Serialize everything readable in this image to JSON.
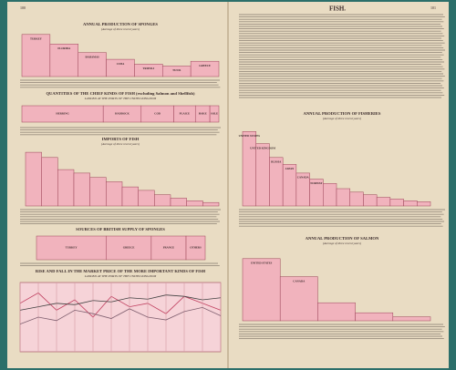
{
  "left_page": {
    "page_number": "100",
    "sponges": {
      "title": "ANNUAL PRODUCTION OF SPONGES",
      "subtitle": "(Average of three recent years)",
      "bars": [
        {
          "label": "TURKEY",
          "value": 44
        },
        {
          "label": "FLORIDA",
          "value": 34
        },
        {
          "label": "BAHAMAS",
          "value": 25
        },
        {
          "label": "CUBA",
          "value": 18
        },
        {
          "label": "TRIPOLI",
          "value": 13
        },
        {
          "label": "TUNIS",
          "value": 11
        },
        {
          "label": "GREECE",
          "value": 16
        }
      ]
    },
    "fish_kinds": {
      "title": "QUANTITIES OF THE CHIEF KINDS OF FISH (excluding Salmon and Shellfish)",
      "subtitle": "LANDED AT THE PORTS OF THE UNITED KINGDOM",
      "bars": [
        {
          "label": "HERRING",
          "value": 90
        },
        {
          "label": "HADDOCK",
          "value": 42
        },
        {
          "label": "COD",
          "value": 36
        },
        {
          "label": "PLAICE",
          "value": 24
        },
        {
          "label": "HAKE",
          "value": 16
        },
        {
          "label": "SOLE",
          "value": 10
        }
      ]
    },
    "imports": {
      "title": "IMPORTS OF FISH",
      "subtitle": "(Average of three recent years)",
      "bars": [
        {
          "value": 62
        },
        {
          "value": 56
        },
        {
          "value": 42
        },
        {
          "value": 38
        },
        {
          "value": 33
        },
        {
          "value": 28
        },
        {
          "value": 22
        },
        {
          "value": 18
        },
        {
          "value": 13
        },
        {
          "value": 9
        },
        {
          "value": 6
        },
        {
          "value": 4
        }
      ]
    },
    "sponge_sources": {
      "title": "SOURCES OF BRITISH SUPPLY OF SPONGES",
      "bars": [
        {
          "label": "TURKEY",
          "value": 80
        },
        {
          "label": "GREECE",
          "value": 52
        },
        {
          "label": "FRANCE",
          "value": 40
        },
        {
          "label": "OTHERS",
          "value": 22
        }
      ]
    },
    "prices": {
      "title": "RISE AND FALL IN THE MARKET PRICE OF THE MORE IMPORTANT KINDS OF FISH",
      "subtitle": "LANDED AT THE PORTS OF THE UNITED KINGDOM",
      "ylim": [
        0,
        10
      ],
      "series": [
        {
          "color": "#c04060",
          "values": [
            7,
            8.5,
            6,
            7.5,
            5,
            8,
            6.5,
            7,
            5.5,
            8,
            7,
            6
          ]
        },
        {
          "color": "#404040",
          "values": [
            6,
            6.5,
            7,
            6.8,
            7.4,
            7.2,
            7.8,
            7.6,
            8.2,
            8,
            7.5,
            7.8
          ]
        },
        {
          "color": "#806070",
          "values": [
            4,
            5,
            4.5,
            6,
            5.5,
            4.8,
            6.2,
            5,
            4.6,
            5.8,
            6.4,
            5.2
          ]
        }
      ]
    }
  },
  "right_page": {
    "page_number": "101",
    "heading": "FISH.",
    "fisheries": {
      "title": "ANNUAL PRODUCTION OF FISHERIES",
      "subtitle": "(Average of three recent years)",
      "bars": [
        {
          "label": "UNITED STATES",
          "value": 86
        },
        {
          "label": "UNITED KINGDOM",
          "value": 72
        },
        {
          "label": "RUSSIA",
          "value": 56
        },
        {
          "label": "JAPAN",
          "value": 48
        },
        {
          "label": "CANADA",
          "value": 38
        },
        {
          "label": "NORWAY",
          "value": 31
        },
        {
          "value": 26
        },
        {
          "value": 20
        },
        {
          "value": 16
        },
        {
          "value": 13
        },
        {
          "value": 10
        },
        {
          "value": 8
        },
        {
          "value": 6
        },
        {
          "value": 5
        }
      ]
    },
    "salmon": {
      "title": "ANNUAL PRODUCTION OF SALMON",
      "subtitle": "(Average of three recent years)",
      "bars": [
        {
          "label": "UNITED STATES",
          "value": 62
        },
        {
          "label": "CANADA",
          "value": 44
        },
        {
          "value": 18
        },
        {
          "value": 8
        },
        {
          "value": 4
        }
      ]
    }
  }
}
